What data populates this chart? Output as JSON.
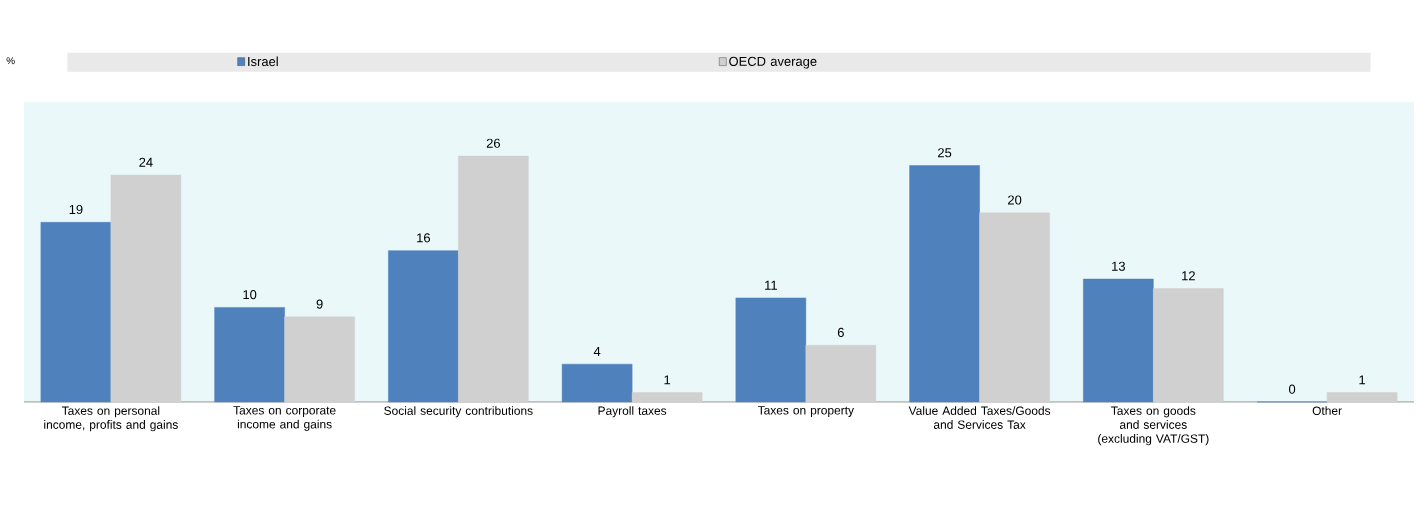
{
  "chart_data": {
    "type": "bar",
    "annotations": [
      "%"
    ],
    "legend": "top",
    "data_labels": true,
    "categories": [
      "Taxes on personal income, profits and gains",
      "Taxes on corporate income and gains",
      "Social security contributions",
      "Payroll taxes",
      "Taxes on property",
      "Value Added Taxes/Goods and Services Tax",
      "Taxes on goods and services (excluding VAT/GST)",
      "Other"
    ],
    "series": [
      {
        "name": "Israel",
        "color": "#4f81bd",
        "values": [
          19,
          10,
          16,
          4,
          11,
          25,
          13,
          0
        ]
      },
      {
        "name": "OECD average",
        "color": "#d0d0d0",
        "values": [
          24,
          9,
          26,
          1,
          6,
          20,
          12,
          1
        ]
      }
    ]
  }
}
